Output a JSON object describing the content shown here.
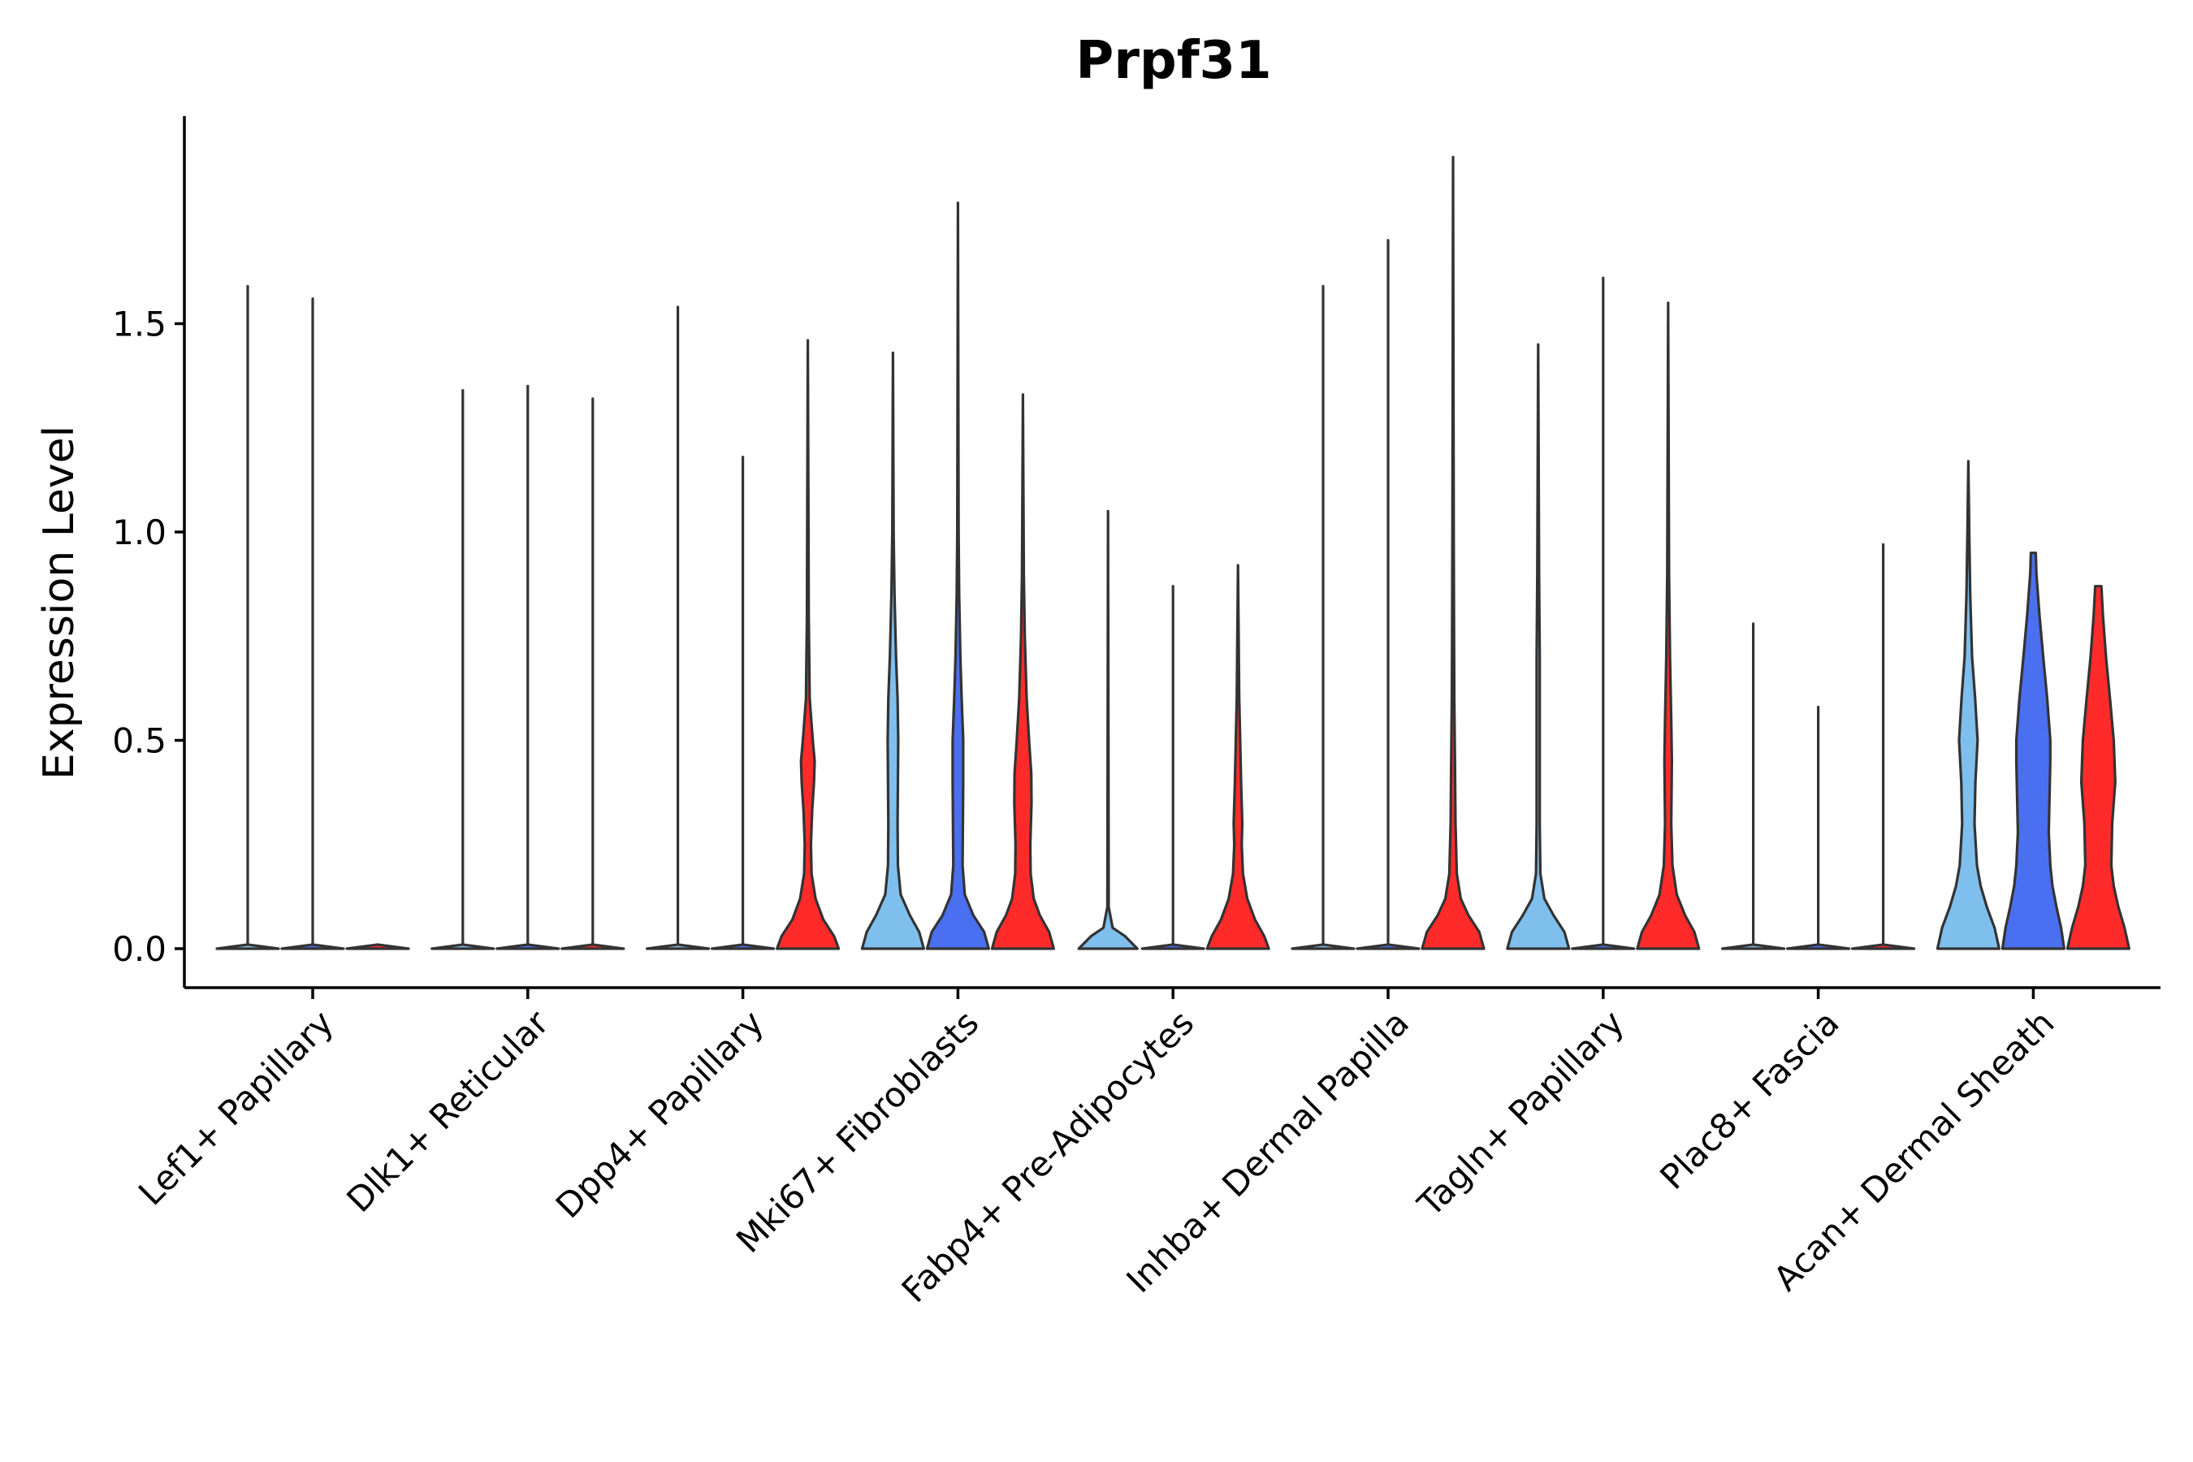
{
  "chart_data": {
    "type": "violin",
    "title": "Prpf31",
    "xlabel": "",
    "ylabel": "Expression Level",
    "ylim": [
      -0.1,
      2.0
    ],
    "yticks": [
      0.0,
      0.5,
      1.0,
      1.5
    ],
    "ytick_labels": [
      "0.0",
      "0.5",
      "1.0",
      "1.5"
    ],
    "grid": false,
    "legend": "none",
    "series_colors": [
      "#7fbfee",
      "#4a6ff0",
      "#ff2a2a"
    ],
    "categories": [
      "Lef1+ Papillary",
      "Dlk1+ Reticular",
      "Dpp4+ Papillary",
      "Mki67+ Fibroblasts",
      "Fabp4+ Pre-Adipocytes",
      "Inhba+ Dermal Papilla",
      "Tagln+ Papillary",
      "Plac8+ Fascia",
      "Acan+ Dermal Sheath"
    ],
    "groups": [
      {
        "category": "Lef1+ Papillary",
        "violins": [
          {
            "series": 0,
            "max": 1.59,
            "density": [
              [
                0,
                1
              ],
              [
                0.01,
                0
              ]
            ]
          },
          {
            "series": 1,
            "max": 1.56,
            "density": [
              [
                0,
                1
              ],
              [
                0.01,
                0
              ]
            ]
          },
          {
            "series": 2,
            "max": 0.0,
            "density": [
              [
                0,
                1
              ],
              [
                0.01,
                0
              ]
            ]
          }
        ]
      },
      {
        "category": "Dlk1+ Reticular",
        "violins": [
          {
            "series": 0,
            "max": 1.34,
            "density": [
              [
                0,
                1
              ],
              [
                0.01,
                0
              ]
            ]
          },
          {
            "series": 1,
            "max": 1.35,
            "density": [
              [
                0,
                1
              ],
              [
                0.01,
                0
              ]
            ]
          },
          {
            "series": 2,
            "max": 1.32,
            "density": [
              [
                0,
                1
              ],
              [
                0.01,
                0
              ]
            ]
          }
        ]
      },
      {
        "category": "Dpp4+ Papillary",
        "violins": [
          {
            "series": 0,
            "max": 1.54,
            "density": [
              [
                0,
                1
              ],
              [
                0.01,
                0
              ]
            ]
          },
          {
            "series": 1,
            "max": 1.18,
            "density": [
              [
                0,
                1
              ],
              [
                0.01,
                0
              ]
            ]
          },
          {
            "series": 2,
            "max": 1.46,
            "density": [
              [
                0,
                1
              ],
              [
                0.03,
                0.85
              ],
              [
                0.07,
                0.5
              ],
              [
                0.12,
                0.25
              ],
              [
                0.18,
                0.12
              ],
              [
                0.25,
                0.1
              ],
              [
                0.33,
                0.14
              ],
              [
                0.4,
                0.2
              ],
              [
                0.45,
                0.22
              ],
              [
                0.5,
                0.16
              ],
              [
                0.6,
                0.06
              ],
              [
                0.8,
                0.03
              ],
              [
                1.0,
                0.02
              ],
              [
                1.46,
                0
              ]
            ]
          }
        ]
      },
      {
        "category": "Mki67+ Fibroblasts",
        "violins": [
          {
            "series": 0,
            "max": 1.43,
            "density": [
              [
                0,
                1
              ],
              [
                0.04,
                0.85
              ],
              [
                0.08,
                0.55
              ],
              [
                0.13,
                0.25
              ],
              [
                0.2,
                0.16
              ],
              [
                0.3,
                0.15
              ],
              [
                0.4,
                0.16
              ],
              [
                0.5,
                0.17
              ],
              [
                0.6,
                0.15
              ],
              [
                0.7,
                0.1
              ],
              [
                0.85,
                0.05
              ],
              [
                1.0,
                0.02
              ],
              [
                1.43,
                0
              ]
            ]
          },
          {
            "series": 1,
            "max": 1.79,
            "density": [
              [
                0,
                1
              ],
              [
                0.04,
                0.85
              ],
              [
                0.08,
                0.5
              ],
              [
                0.13,
                0.22
              ],
              [
                0.2,
                0.15
              ],
              [
                0.3,
                0.16
              ],
              [
                0.4,
                0.17
              ],
              [
                0.5,
                0.17
              ],
              [
                0.6,
                0.12
              ],
              [
                0.7,
                0.08
              ],
              [
                0.85,
                0.04
              ],
              [
                1.0,
                0.02
              ],
              [
                1.79,
                0
              ]
            ]
          },
          {
            "series": 2,
            "max": 1.33,
            "density": [
              [
                0,
                1
              ],
              [
                0.04,
                0.85
              ],
              [
                0.08,
                0.55
              ],
              [
                0.12,
                0.35
              ],
              [
                0.18,
                0.25
              ],
              [
                0.25,
                0.24
              ],
              [
                0.35,
                0.28
              ],
              [
                0.42,
                0.27
              ],
              [
                0.5,
                0.2
              ],
              [
                0.6,
                0.12
              ],
              [
                0.75,
                0.06
              ],
              [
                0.9,
                0.03
              ],
              [
                1.33,
                0
              ]
            ]
          }
        ]
      },
      {
        "category": "Fabp4+ Pre-Adipocytes",
        "violins": [
          {
            "series": 0,
            "max": 1.05,
            "density": [
              [
                0,
                0.95
              ],
              [
                0.03,
                0.55
              ],
              [
                0.05,
                0.15
              ],
              [
                0.1,
                0.02
              ],
              [
                1.05,
                0
              ]
            ]
          },
          {
            "series": 1,
            "max": 0.87,
            "density": [
              [
                0,
                1
              ],
              [
                0.01,
                0
              ]
            ]
          },
          {
            "series": 2,
            "max": 0.92,
            "density": [
              [
                0,
                1
              ],
              [
                0.03,
                0.85
              ],
              [
                0.07,
                0.55
              ],
              [
                0.12,
                0.3
              ],
              [
                0.18,
                0.16
              ],
              [
                0.25,
                0.12
              ],
              [
                0.3,
                0.14
              ],
              [
                0.4,
                0.1
              ],
              [
                0.5,
                0.07
              ],
              [
                0.6,
                0.04
              ],
              [
                0.92,
                0
              ]
            ]
          }
        ]
      },
      {
        "category": "Inhba+ Dermal Papilla",
        "violins": [
          {
            "series": 0,
            "max": 1.59,
            "density": [
              [
                0,
                1
              ],
              [
                0.01,
                0
              ]
            ]
          },
          {
            "series": 1,
            "max": 1.7,
            "density": [
              [
                0,
                1
              ],
              [
                0.01,
                0
              ]
            ]
          },
          {
            "series": 2,
            "max": 1.9,
            "density": [
              [
                0,
                1
              ],
              [
                0.04,
                0.85
              ],
              [
                0.08,
                0.5
              ],
              [
                0.12,
                0.25
              ],
              [
                0.18,
                0.12
              ],
              [
                0.3,
                0.08
              ],
              [
                0.45,
                0.06
              ],
              [
                0.6,
                0.04
              ],
              [
                0.8,
                0.03
              ],
              [
                1.0,
                0.02
              ],
              [
                1.9,
                0
              ]
            ]
          }
        ]
      },
      {
        "category": "Tagln+ Papillary",
        "violins": [
          {
            "series": 0,
            "max": 1.45,
            "density": [
              [
                0,
                1
              ],
              [
                0.04,
                0.85
              ],
              [
                0.08,
                0.5
              ],
              [
                0.12,
                0.2
              ],
              [
                0.18,
                0.07
              ],
              [
                0.3,
                0.05
              ],
              [
                0.5,
                0.05
              ],
              [
                0.7,
                0.05
              ],
              [
                0.9,
                0.03
              ],
              [
                1.45,
                0
              ]
            ]
          },
          {
            "series": 1,
            "max": 1.61,
            "density": [
              [
                0,
                1
              ],
              [
                0.01,
                0
              ]
            ]
          },
          {
            "series": 2,
            "max": 1.55,
            "density": [
              [
                0,
                1
              ],
              [
                0.04,
                0.85
              ],
              [
                0.08,
                0.55
              ],
              [
                0.13,
                0.28
              ],
              [
                0.2,
                0.14
              ],
              [
                0.3,
                0.1
              ],
              [
                0.45,
                0.12
              ],
              [
                0.55,
                0.1
              ],
              [
                0.7,
                0.06
              ],
              [
                0.9,
                0.03
              ],
              [
                1.55,
                0
              ]
            ]
          }
        ]
      },
      {
        "category": "Plac8+ Fascia",
        "violins": [
          {
            "series": 0,
            "max": 0.78,
            "density": [
              [
                0,
                1
              ],
              [
                0.01,
                0
              ]
            ]
          },
          {
            "series": 1,
            "max": 0.58,
            "density": [
              [
                0,
                1
              ],
              [
                0.01,
                0
              ]
            ]
          },
          {
            "series": 2,
            "max": 0.97,
            "density": [
              [
                0,
                1
              ],
              [
                0.01,
                0
              ]
            ]
          }
        ]
      },
      {
        "category": "Acan+ Dermal Sheath",
        "violins": [
          {
            "series": 0,
            "max": 1.17,
            "density": [
              [
                0,
                1
              ],
              [
                0.05,
                0.85
              ],
              [
                0.1,
                0.6
              ],
              [
                0.15,
                0.4
              ],
              [
                0.2,
                0.28
              ],
              [
                0.3,
                0.2
              ],
              [
                0.4,
                0.23
              ],
              [
                0.5,
                0.3
              ],
              [
                0.6,
                0.22
              ],
              [
                0.7,
                0.12
              ],
              [
                0.85,
                0.06
              ],
              [
                1.0,
                0.03
              ],
              [
                1.17,
                0
              ]
            ]
          },
          {
            "series": 1,
            "max": 0.95,
            "density": [
              [
                0,
                1
              ],
              [
                0.05,
                0.9
              ],
              [
                0.1,
                0.75
              ],
              [
                0.15,
                0.62
              ],
              [
                0.2,
                0.55
              ],
              [
                0.28,
                0.5
              ],
              [
                0.35,
                0.52
              ],
              [
                0.45,
                0.55
              ],
              [
                0.5,
                0.55
              ],
              [
                0.6,
                0.45
              ],
              [
                0.7,
                0.32
              ],
              [
                0.8,
                0.2
              ],
              [
                0.9,
                0.1
              ],
              [
                0.95,
                0.08
              ]
            ]
          },
          {
            "series": 2,
            "max": 0.87,
            "density": [
              [
                0,
                1
              ],
              [
                0.05,
                0.85
              ],
              [
                0.1,
                0.65
              ],
              [
                0.15,
                0.5
              ],
              [
                0.2,
                0.42
              ],
              [
                0.3,
                0.45
              ],
              [
                0.4,
                0.55
              ],
              [
                0.5,
                0.5
              ],
              [
                0.6,
                0.38
              ],
              [
                0.7,
                0.25
              ],
              [
                0.8,
                0.15
              ],
              [
                0.87,
                0.1
              ]
            ]
          }
        ]
      }
    ]
  }
}
